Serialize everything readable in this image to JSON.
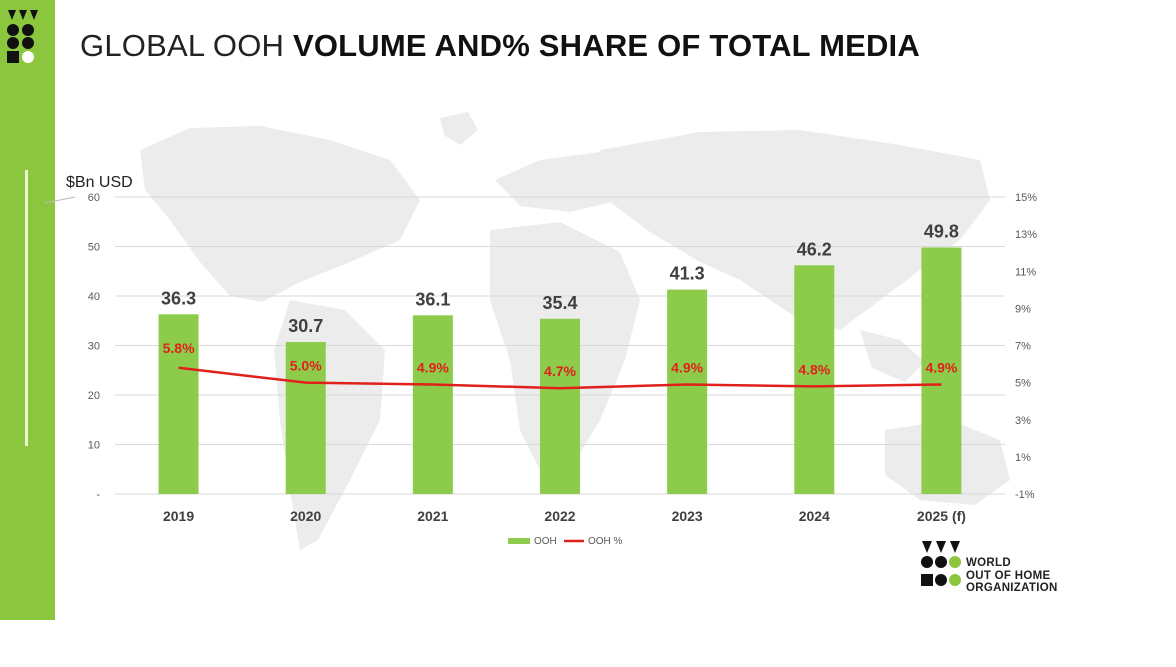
{
  "header": {
    "title_light": "GLOBAL OOH",
    "title_bold": "VOLUME AND% SHARE OF TOTAL MEDIA"
  },
  "brand": {
    "line1": "WORLD",
    "line2": "OUT OF HOME",
    "line3": "ORGANIZATION"
  },
  "colors": {
    "accent": "#8cc63f",
    "bar": "#8dcc4a",
    "line": "#e0201b",
    "grid": "#d9d9d9"
  },
  "chart_data": {
    "type": "bar",
    "categories": [
      "2019",
      "2020",
      "2021",
      "2022",
      "2023",
      "2024",
      "2025 (f)"
    ],
    "ylabel": "$Bn USD",
    "ylim": [
      0,
      60
    ],
    "yticks": [
      "-",
      "10",
      "20",
      "30",
      "40",
      "50",
      "60"
    ],
    "y2lim": [
      -1,
      15
    ],
    "y2ticks": [
      "-1%",
      "1%",
      "3%",
      "5%",
      "7%",
      "9%",
      "11%",
      "13%",
      "15%"
    ],
    "grid": true,
    "legend_position": "bottom",
    "series": [
      {
        "name": "OOH",
        "kind": "bar",
        "axis": "left",
        "values": [
          36.3,
          30.7,
          36.1,
          35.4,
          41.3,
          46.2,
          49.8
        ],
        "labels": [
          "36.3",
          "30.7",
          "36.1",
          "35.4",
          "41.3",
          "46.2",
          "49.8"
        ]
      },
      {
        "name": "OOH %",
        "kind": "line",
        "axis": "right",
        "values": [
          5.8,
          5.0,
          4.9,
          4.7,
          4.9,
          4.8,
          4.9
        ],
        "labels": [
          "5.8%",
          "5.0%",
          "4.9%",
          "4.7%",
          "4.9%",
          "4.8%",
          "4.9%"
        ]
      }
    ]
  }
}
